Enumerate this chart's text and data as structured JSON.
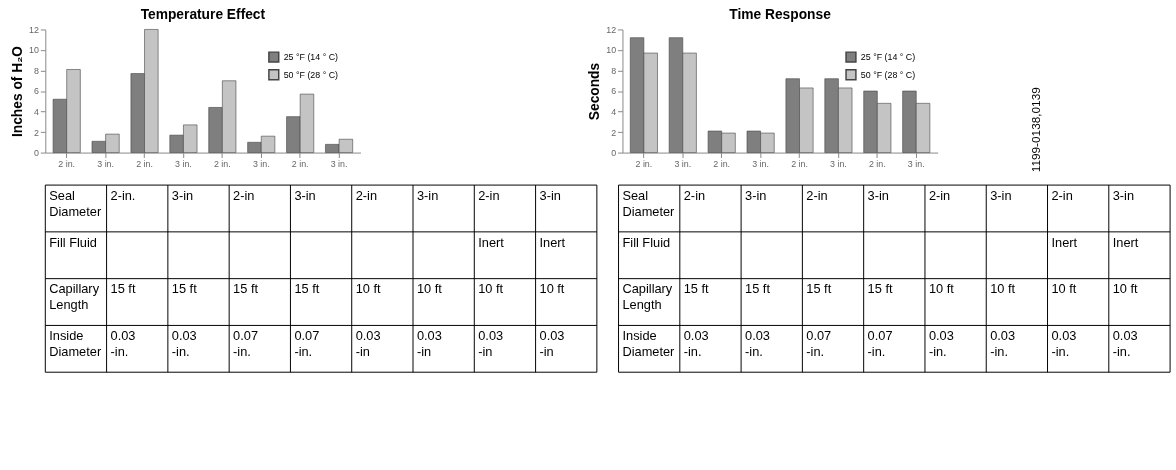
{
  "chart_data": [
    {
      "type": "bar",
      "title": "Temperature Effect",
      "ylabel": "Inches of H₂O",
      "categories": [
        "2 in.",
        "3 in.",
        "2 in.",
        "3 in.",
        "2 in.",
        "3 in.",
        "2 in.",
        "3 in."
      ],
      "series": [
        {
          "name": "25 °F (14 ° C)",
          "color": "#7f7f7f",
          "values": [
            5.2,
            1.1,
            7.7,
            1.7,
            4.4,
            1.0,
            3.5,
            0.8
          ]
        },
        {
          "name": "50 °F (28 ° C)",
          "color": "#c4c4c4",
          "values": [
            8.1,
            1.8,
            12.0,
            2.7,
            7.0,
            1.6,
            5.7,
            1.3
          ]
        }
      ],
      "ylim": [
        0,
        12
      ],
      "yticks": [
        0,
        2,
        4,
        6,
        8,
        10,
        12
      ],
      "grid": false,
      "legend": "top right"
    },
    {
      "type": "bar",
      "title": "Time Response",
      "ylabel": "Seconds",
      "categories": [
        "2 in.",
        "3 in.",
        "2 in.",
        "3 in.",
        "2 in.",
        "3 in.",
        "2 in.",
        "3 in."
      ],
      "series": [
        {
          "name": "25 °F (14 ° C)",
          "color": "#7f7f7f",
          "values": [
            11.2,
            11.2,
            2.1,
            2.1,
            7.2,
            7.2,
            6.0,
            6.0
          ]
        },
        {
          "name": "50 °F (28 ° C)",
          "color": "#c4c4c4",
          "values": [
            9.7,
            9.7,
            1.9,
            1.9,
            6.3,
            6.3,
            4.8,
            4.8
          ]
        }
      ],
      "ylim": [
        0,
        12
      ],
      "yticks": [
        0,
        2,
        4,
        6,
        8,
        10,
        12
      ],
      "grid": false,
      "legend": "top right",
      "annotations": [
        "1199-0138,0139"
      ]
    },
    {
      "type": "other",
      "annotations": [
        "Seal\nDiameter",
        "2-in.",
        "3-in",
        "2-in",
        "3-in",
        "2-in",
        "3-in",
        "2-in",
        "3-in",
        "Fill Fluid",
        null,
        null,
        null,
        null,
        null,
        null,
        "Inert",
        "Inert",
        "Capillary\nLength",
        "15 ft",
        "15 ft",
        "15 ft",
        "15 ft",
        "10 ft",
        "10 ft",
        "10 ft",
        "10 ft",
        "Inside\nDiameter",
        "0.03\n-in.",
        "0.03\n-in.",
        "0.07\n-in.",
        "0.07\n-in.",
        "0.03\n-in",
        "0.03\n-in",
        "0.03\n-in",
        "0.03\n-in"
      ]
    },
    {
      "type": "other",
      "annotations": [
        "Seal\nDiameter",
        "2-in",
        "3-in",
        "2-in",
        "3-in",
        "2-in",
        "3-in",
        "2-in",
        "3-in",
        "Fill Fluid",
        null,
        null,
        null,
        null,
        null,
        null,
        "Inert",
        "Inert",
        "Capillary\nLength",
        "15 ft",
        "15 ft",
        "15 ft",
        "15 ft",
        "10 ft",
        "10 ft",
        "10 ft",
        "10 ft",
        "Inside\nDiameter",
        "0.03\n-in.",
        "0.03\n-in.",
        "0.07\n-in.",
        "0.07\n-in.",
        "0.03\n-in.",
        "0.03\n-in.",
        "0.03\n-in.",
        "0.03\n-in."
      ]
    }
  ]
}
